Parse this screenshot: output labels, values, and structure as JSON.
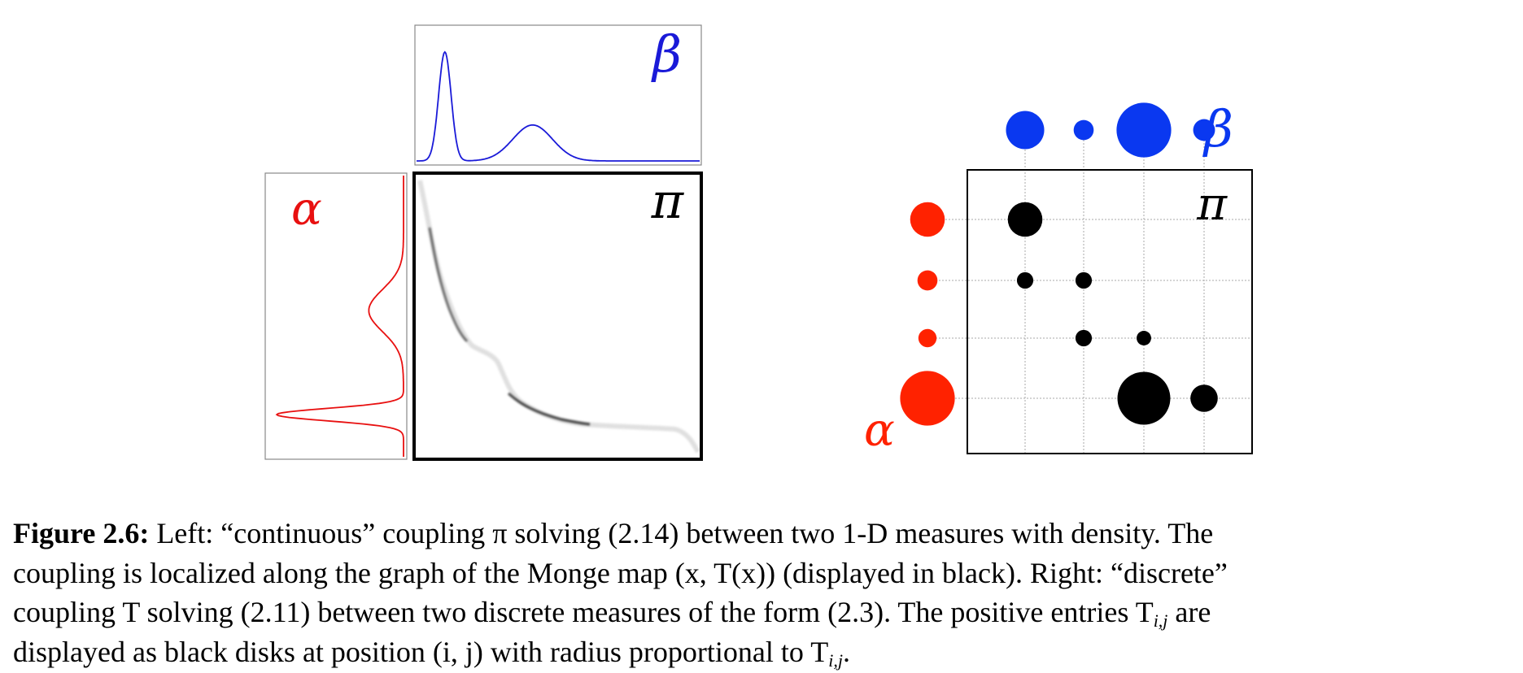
{
  "figure": {
    "left": {
      "beta_symbol": "β",
      "alpha_symbol": "α",
      "pi_symbol": "π",
      "colors": {
        "beta": "#1a1ad8",
        "alpha": "#e81010",
        "coupling": "#000000"
      }
    },
    "right": {
      "beta_symbol": "β",
      "alpha_symbol": "α",
      "pi_symbol": "π",
      "colors": {
        "beta": "#0a38f0",
        "alpha": "#ff2200",
        "coupling": "#000000",
        "grid": "#aaaaaa"
      },
      "beta_weights": [
        0.42,
        0.22,
        0.6,
        0.24
      ],
      "alpha_weights": [
        0.38,
        0.22,
        0.2,
        0.6
      ],
      "coupling_entries": [
        {
          "i": 1,
          "j": 1,
          "value": 0.38
        },
        {
          "i": 2,
          "j": 1,
          "value": 0.18
        },
        {
          "i": 2,
          "j": 2,
          "value": 0.18
        },
        {
          "i": 3,
          "j": 2,
          "value": 0.18
        },
        {
          "i": 3,
          "j": 3,
          "value": 0.16
        },
        {
          "i": 4,
          "j": 3,
          "value": 0.58
        },
        {
          "i": 4,
          "j": 4,
          "value": 0.3
        }
      ]
    }
  },
  "caption": {
    "label": "Figure 2.6:",
    "line1": "Left: “continuous” coupling π solving (2.14) between two 1-D measures with density. The",
    "line2": "coupling is localized along the graph of the Monge map (x, T(x)) (displayed in black). Right: “discrete”",
    "line3a": "coupling T solving (2.11) between two discrete measures of the form (2.3). The positive entries T",
    "line3_sub": "i,j",
    "line3b": "are",
    "line4a": "displayed as black disks at position (i, j) with radius proportional to T",
    "line4_sub": "i,j",
    "line4b": "."
  }
}
